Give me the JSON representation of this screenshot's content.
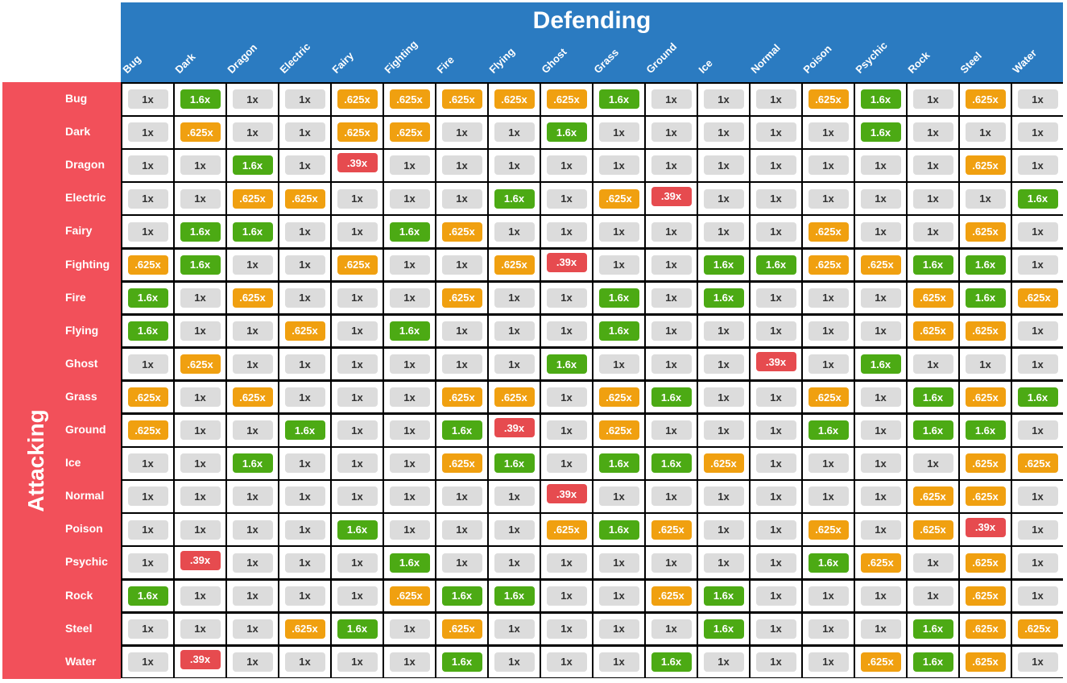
{
  "chart_data": {
    "type": "table",
    "title": "Defending",
    "row_title": "Attacking",
    "columns": [
      "Bug",
      "Dark",
      "Dragon",
      "Electric",
      "Fairy",
      "Fighting",
      "Fire",
      "Flying",
      "Ghost",
      "Grass",
      "Ground",
      "Ice",
      "Normal",
      "Poison",
      "Psychic",
      "Rock",
      "Steel",
      "Water"
    ],
    "rows": [
      "Bug",
      "Dark",
      "Dragon",
      "Electric",
      "Fairy",
      "Fighting",
      "Fire",
      "Flying",
      "Ghost",
      "Grass",
      "Ground",
      "Ice",
      "Normal",
      "Poison",
      "Psychic",
      "Rock",
      "Steel",
      "Water"
    ],
    "values": [
      [
        "1x",
        "1.6x",
        "1x",
        "1x",
        ".625x",
        ".625x",
        ".625x",
        ".625x",
        ".625x",
        "1.6x",
        "1x",
        "1x",
        "1x",
        ".625x",
        "1.6x",
        "1x",
        ".625x",
        "1x"
      ],
      [
        "1x",
        ".625x",
        "1x",
        "1x",
        ".625x",
        ".625x",
        "1x",
        "1x",
        "1.6x",
        "1x",
        "1x",
        "1x",
        "1x",
        "1x",
        "1.6x",
        "1x",
        "1x",
        "1x"
      ],
      [
        "1x",
        "1x",
        "1.6x",
        "1x",
        ".39x",
        "1x",
        "1x",
        "1x",
        "1x",
        "1x",
        "1x",
        "1x",
        "1x",
        "1x",
        "1x",
        "1x",
        ".625x",
        "1x"
      ],
      [
        "1x",
        "1x",
        ".625x",
        ".625x",
        "1x",
        "1x",
        "1x",
        "1.6x",
        "1x",
        ".625x",
        ".39x",
        "1x",
        "1x",
        "1x",
        "1x",
        "1x",
        "1x",
        "1.6x"
      ],
      [
        "1x",
        "1.6x",
        "1.6x",
        "1x",
        "1x",
        "1.6x",
        ".625x",
        "1x",
        "1x",
        "1x",
        "1x",
        "1x",
        "1x",
        ".625x",
        "1x",
        "1x",
        ".625x",
        "1x"
      ],
      [
        ".625x",
        "1.6x",
        "1x",
        "1x",
        ".625x",
        "1x",
        "1x",
        ".625x",
        ".39x",
        "1x",
        "1x",
        "1.6x",
        "1.6x",
        ".625x",
        ".625x",
        "1.6x",
        "1.6x",
        "1x"
      ],
      [
        "1.6x",
        "1x",
        ".625x",
        "1x",
        "1x",
        "1x",
        ".625x",
        "1x",
        "1x",
        "1.6x",
        "1x",
        "1.6x",
        "1x",
        "1x",
        "1x",
        ".625x",
        "1.6x",
        ".625x"
      ],
      [
        "1.6x",
        "1x",
        "1x",
        ".625x",
        "1x",
        "1.6x",
        "1x",
        "1x",
        "1x",
        "1.6x",
        "1x",
        "1x",
        "1x",
        "1x",
        "1x",
        ".625x",
        ".625x",
        "1x"
      ],
      [
        "1x",
        ".625x",
        "1x",
        "1x",
        "1x",
        "1x",
        "1x",
        "1x",
        "1.6x",
        "1x",
        "1x",
        "1x",
        ".39x",
        "1x",
        "1.6x",
        "1x",
        "1x",
        "1x"
      ],
      [
        ".625x",
        "1x",
        ".625x",
        "1x",
        "1x",
        "1x",
        ".625x",
        ".625x",
        "1x",
        ".625x",
        "1.6x",
        "1x",
        "1x",
        ".625x",
        "1x",
        "1.6x",
        ".625x",
        "1.6x"
      ],
      [
        ".625x",
        "1x",
        "1x",
        "1.6x",
        "1x",
        "1x",
        "1.6x",
        ".39x",
        "1x",
        ".625x",
        "1x",
        "1x",
        "1x",
        "1.6x",
        "1x",
        "1.6x",
        "1.6x",
        "1x"
      ],
      [
        "1x",
        "1x",
        "1.6x",
        "1x",
        "1x",
        "1x",
        ".625x",
        "1.6x",
        "1x",
        "1.6x",
        "1.6x",
        ".625x",
        "1x",
        "1x",
        "1x",
        "1x",
        ".625x",
        ".625x"
      ],
      [
        "1x",
        "1x",
        "1x",
        "1x",
        "1x",
        "1x",
        "1x",
        "1x",
        ".39x",
        "1x",
        "1x",
        "1x",
        "1x",
        "1x",
        "1x",
        ".625x",
        ".625x",
        "1x"
      ],
      [
        "1x",
        "1x",
        "1x",
        "1x",
        "1.6x",
        "1x",
        "1x",
        "1x",
        ".625x",
        "1.6x",
        ".625x",
        "1x",
        "1x",
        ".625x",
        "1x",
        ".625x",
        ".39x",
        "1x"
      ],
      [
        "1x",
        ".39x",
        "1x",
        "1x",
        "1x",
        "1.6x",
        "1x",
        "1x",
        "1x",
        "1x",
        "1x",
        "1x",
        "1x",
        "1.6x",
        ".625x",
        "1x",
        ".625x",
        "1x"
      ],
      [
        "1.6x",
        "1x",
        "1x",
        "1x",
        "1x",
        ".625x",
        "1.6x",
        "1.6x",
        "1x",
        "1x",
        ".625x",
        "1.6x",
        "1x",
        "1x",
        "1x",
        "1x",
        ".625x",
        "1x"
      ],
      [
        "1x",
        "1x",
        "1x",
        ".625x",
        "1.6x",
        "1x",
        ".625x",
        "1x",
        "1x",
        "1x",
        "1x",
        "1.6x",
        "1x",
        "1x",
        "1x",
        "1.6x",
        ".625x",
        ".625x"
      ],
      [
        "1x",
        ".39x",
        "1x",
        "1x",
        "1x",
        "1x",
        "1.6x",
        "1x",
        "1x",
        "1x",
        "1.6x",
        "1x",
        "1x",
        "1x",
        ".625x",
        "1.6x",
        ".625x",
        "1x"
      ]
    ],
    "colors": {
      "header": "#2b7bc1",
      "row_header": "#f2505a",
      "1.6x": "#4caa14",
      "1x": "#dcdcdc",
      ".625x": "#f0a010",
      ".39x": "#e64b4f"
    }
  }
}
